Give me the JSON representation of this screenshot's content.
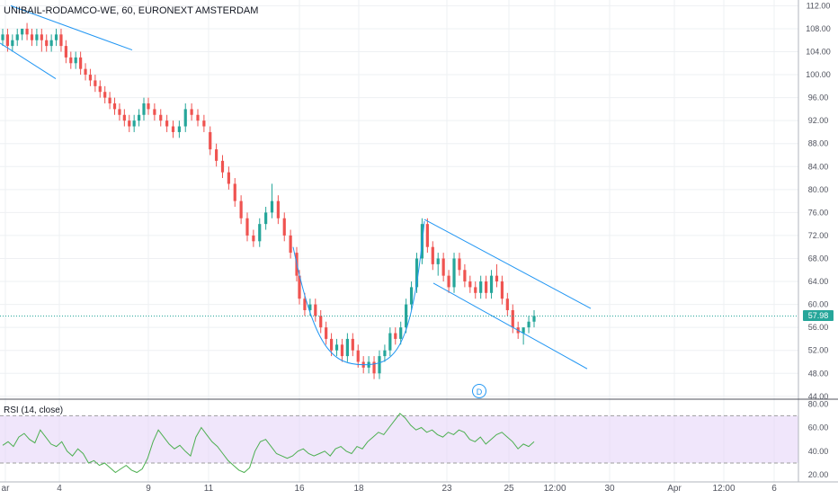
{
  "header": {
    "symbol": "UNIBAIL-RODAMCO-WE, 60, EURONEXT AMSTERDAM",
    "rsi_label": "RSI (14, close)",
    "last_price": "57.98",
    "marker": "D"
  },
  "colors": {
    "up": "#26a69a",
    "down": "#ef5350",
    "trendline": "#2196f3",
    "rsi_line": "#4caf50",
    "rsi_band": "#e6d6f8",
    "grid": "#eef0f3",
    "axis_text": "#50535e"
  },
  "chart_data": [
    {
      "type": "candlestick",
      "title": "UNIBAIL-RODAMCO-WE, 60, EURONEXT AMSTERDAM",
      "x_ticks": [
        "ar",
        "4",
        "9",
        "11",
        "16",
        "18",
        "23",
        "25",
        "12:00",
        "30",
        "Apr",
        "12:00",
        "6"
      ],
      "y_ticks": [
        "112.00",
        "108.00",
        "104.00",
        "100.00",
        "96.00",
        "92.00",
        "88.00",
        "84.00",
        "80.00",
        "76.00",
        "72.00",
        "68.00",
        "64.00",
        "60.00",
        "56.00",
        "52.00",
        "48.00",
        "44.00"
      ],
      "ylim": [
        43.5,
        113
      ],
      "grid": true,
      "last_price": 57.98,
      "candles": [
        [
          106,
          108,
          105,
          107
        ],
        [
          107,
          108,
          104,
          105
        ],
        [
          105,
          107,
          104,
          106
        ],
        [
          106,
          108,
          105,
          107
        ],
        [
          107,
          108,
          106,
          108
        ],
        [
          108,
          109,
          106,
          107
        ],
        [
          107,
          108,
          105,
          106
        ],
        [
          106,
          108,
          105,
          107
        ],
        [
          107,
          108,
          104,
          106
        ],
        [
          106,
          107,
          104,
          105
        ],
        [
          105,
          107,
          104,
          106
        ],
        [
          106,
          108,
          105,
          107
        ],
        [
          107,
          108,
          104,
          105
        ],
        [
          105,
          106,
          102,
          103
        ],
        [
          103,
          104,
          101,
          102
        ],
        [
          102,
          104,
          101,
          103
        ],
        [
          103,
          104,
          100,
          101
        ],
        [
          101,
          102,
          99,
          100
        ],
        [
          100,
          101,
          98,
          99
        ],
        [
          99,
          100,
          97,
          98
        ],
        [
          98,
          99,
          96,
          97
        ],
        [
          97,
          98,
          95,
          96
        ],
        [
          96,
          97,
          94,
          95
        ],
        [
          95,
          96,
          93,
          94
        ],
        [
          94,
          95,
          92,
          93
        ],
        [
          93,
          94,
          91,
          92
        ],
        [
          92,
          93,
          90,
          91
        ],
        [
          91,
          93,
          90,
          92
        ],
        [
          92,
          94,
          91,
          93
        ],
        [
          93,
          96,
          92,
          95
        ],
        [
          95,
          96,
          93,
          94
        ],
        [
          94,
          95,
          92,
          93
        ],
        [
          93,
          94,
          91,
          92
        ],
        [
          92,
          93,
          90,
          91
        ],
        [
          91,
          92,
          89,
          90
        ],
        [
          90,
          92,
          89,
          91
        ],
        [
          91,
          95,
          90,
          94
        ],
        [
          94,
          95,
          92,
          93
        ],
        [
          93,
          94,
          91,
          92
        ],
        [
          92,
          93,
          90,
          91
        ],
        [
          90,
          91,
          86,
          87
        ],
        [
          87,
          88,
          84,
          85
        ],
        [
          85,
          86,
          82,
          83
        ],
        [
          83,
          84,
          80,
          81
        ],
        [
          81,
          82,
          77,
          78
        ],
        [
          78,
          79,
          74,
          75
        ],
        [
          75,
          76,
          71,
          72
        ],
        [
          72,
          73,
          70,
          71
        ],
        [
          71,
          75,
          70,
          74
        ],
        [
          74,
          77,
          73,
          76
        ],
        [
          76,
          81,
          75,
          78
        ],
        [
          78,
          79,
          74,
          75
        ],
        [
          75,
          76,
          71,
          72
        ],
        [
          72,
          73,
          68,
          69
        ],
        [
          69,
          70,
          64,
          65
        ],
        [
          65,
          66,
          60,
          61
        ],
        [
          61,
          62,
          58,
          59
        ],
        [
          59,
          61,
          58,
          60
        ],
        [
          60,
          61,
          57,
          58
        ],
        [
          58,
          59,
          55,
          56
        ],
        [
          56,
          57,
          53,
          54
        ],
        [
          54,
          55,
          51,
          52
        ],
        [
          52,
          54,
          51,
          53
        ],
        [
          53,
          54,
          50,
          51
        ],
        [
          51,
          55,
          50,
          54
        ],
        [
          54,
          55,
          51,
          52
        ],
        [
          52,
          53,
          49,
          50
        ],
        [
          50,
          51,
          48,
          49
        ],
        [
          49,
          51,
          48,
          50
        ],
        [
          50,
          51,
          47,
          48
        ],
        [
          48,
          52,
          47,
          51
        ],
        [
          51,
          53,
          50,
          52
        ],
        [
          52,
          56,
          51,
          55
        ],
        [
          55,
          56,
          53,
          54
        ],
        [
          54,
          57,
          53,
          56
        ],
        [
          56,
          61,
          55,
          60
        ],
        [
          60,
          64,
          59,
          63
        ],
        [
          63,
          69,
          62,
          68
        ],
        [
          68,
          75,
          67,
          74
        ],
        [
          74,
          75,
          69,
          70
        ],
        [
          70,
          71,
          66,
          67
        ],
        [
          67,
          69,
          65,
          68
        ],
        [
          68,
          69,
          64,
          65
        ],
        [
          65,
          66,
          62,
          63
        ],
        [
          63,
          69,
          62,
          68
        ],
        [
          68,
          69,
          65,
          66
        ],
        [
          66,
          67,
          63,
          64
        ],
        [
          64,
          65,
          62,
          63
        ],
        [
          63,
          64,
          61,
          62
        ],
        [
          62,
          65,
          61,
          64
        ],
        [
          64,
          65,
          61,
          62
        ],
        [
          62,
          66,
          61,
          65
        ],
        [
          65,
          67,
          63,
          64
        ],
        [
          64,
          65,
          60,
          61
        ],
        [
          61,
          62,
          58,
          59
        ],
        [
          59,
          60,
          55,
          56
        ],
        [
          56,
          57,
          54,
          55
        ],
        [
          55,
          56,
          53,
          56
        ],
        [
          56,
          58,
          55,
          57
        ],
        [
          57,
          59,
          56,
          58
        ]
      ]
    },
    {
      "type": "line",
      "title": "RSI (14, close)",
      "y_ticks": [
        "80.00",
        "60.00",
        "40.00",
        "20.00"
      ],
      "ylim": [
        14,
        84
      ],
      "band": [
        30,
        70
      ],
      "series": [
        {
          "name": "RSI (14, close)",
          "values": [
            45,
            48,
            44,
            52,
            55,
            50,
            47,
            58,
            52,
            46,
            44,
            48,
            40,
            36,
            42,
            38,
            30,
            32,
            28,
            30,
            26,
            22,
            25,
            28,
            24,
            22,
            25,
            34,
            48,
            58,
            52,
            46,
            42,
            45,
            40,
            36,
            52,
            60,
            54,
            48,
            44,
            38,
            32,
            28,
            24,
            22,
            26,
            40,
            48,
            50,
            44,
            38,
            36,
            34,
            36,
            40,
            42,
            38,
            36,
            38,
            40,
            36,
            42,
            44,
            40,
            38,
            44,
            42,
            48,
            52,
            56,
            54,
            60,
            66,
            72,
            68,
            62,
            58,
            60,
            56,
            58,
            54,
            52,
            56,
            54,
            58,
            56,
            50,
            48,
            52,
            46,
            50,
            54,
            56,
            52,
            48,
            42,
            46,
            44,
            48
          ]
        }
      ]
    }
  ]
}
